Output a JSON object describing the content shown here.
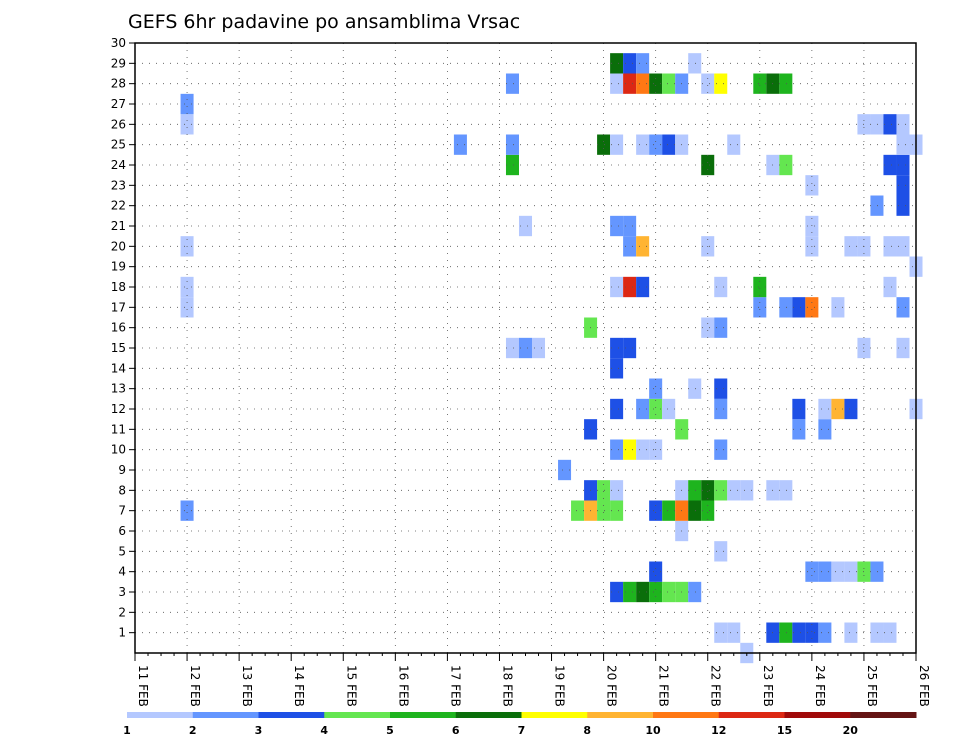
{
  "chart_data": {
    "type": "heatmap",
    "title": "GEFS 6hr padavine po ansamblima Vrsac",
    "xlabel": "",
    "ylabel": "",
    "x_tick_labels": [
      "11 FEB",
      "12 FEB",
      "13 FEB",
      "14 FEB",
      "15 FEB",
      "16 FEB",
      "17 FEB",
      "18 FEB",
      "19 FEB",
      "20 FEB",
      "21 FEB",
      "22 FEB",
      "23 FEB",
      "24 FEB",
      "25 FEB",
      "26 FEB"
    ],
    "xlim": [
      0,
      15
    ],
    "y_tick_labels": [
      "1",
      "2",
      "3",
      "4",
      "5",
      "6",
      "7",
      "8",
      "9",
      "10",
      "11",
      "12",
      "13",
      "14",
      "15",
      "16",
      "17",
      "18",
      "19",
      "20",
      "21",
      "22",
      "23",
      "24",
      "25",
      "26",
      "27",
      "28",
      "29",
      "30"
    ],
    "ylim": [
      0,
      30
    ],
    "grid": true,
    "legend": {
      "placement": "bottom",
      "labels": [
        "1",
        "2",
        "3",
        "4",
        "5",
        "6",
        "7",
        "8",
        "10",
        "12",
        "15",
        "20"
      ],
      "colors": [
        "#b4c8ff",
        "#6496ff",
        "#1e50e6",
        "#64e650",
        "#1eb41e",
        "#0a6e0a",
        "#ffff00",
        "#ffb432",
        "#ff7814",
        "#dc2814",
        "#a00a0a",
        "#641414"
      ]
    },
    "cells_note": "each cell: [member, day offset from 11 FEB, level index into legend.colors]",
    "cells": [
      [
        1,
        11.25,
        0
      ],
      [
        1,
        11.5,
        0
      ],
      [
        1,
        12.25,
        2
      ],
      [
        1,
        12.5,
        4
      ],
      [
        1,
        12.75,
        2
      ],
      [
        1,
        13.0,
        2
      ],
      [
        1,
        13.25,
        1
      ],
      [
        1,
        13.75,
        0
      ],
      [
        1,
        14.25,
        0
      ],
      [
        1,
        14.5,
        0
      ],
      [
        0,
        11.75,
        0
      ],
      [
        3,
        9.25,
        2
      ],
      [
        3,
        9.5,
        4
      ],
      [
        3,
        9.75,
        5
      ],
      [
        3,
        10.0,
        4
      ],
      [
        3,
        10.25,
        3
      ],
      [
        3,
        10.5,
        3
      ],
      [
        3,
        10.75,
        1
      ],
      [
        4,
        10.0,
        2
      ],
      [
        4,
        13.0,
        1
      ],
      [
        4,
        13.25,
        1
      ],
      [
        4,
        13.5,
        0
      ],
      [
        4,
        13.75,
        0
      ],
      [
        4,
        14.0,
        3
      ],
      [
        4,
        14.25,
        1
      ],
      [
        5,
        11.25,
        0
      ],
      [
        6,
        10.5,
        0
      ],
      [
        7,
        1.0,
        1
      ],
      [
        7,
        8.5,
        3
      ],
      [
        7,
        8.75,
        7
      ],
      [
        7,
        9.0,
        3
      ],
      [
        7,
        9.25,
        3
      ],
      [
        7,
        10.0,
        2
      ],
      [
        7,
        10.25,
        4
      ],
      [
        7,
        10.5,
        8
      ],
      [
        7,
        10.75,
        5
      ],
      [
        7,
        11.0,
        4
      ],
      [
        8,
        8.75,
        2
      ],
      [
        8,
        9.0,
        3
      ],
      [
        8,
        9.25,
        0
      ],
      [
        8,
        10.5,
        0
      ],
      [
        8,
        10.75,
        4
      ],
      [
        8,
        11.0,
        5
      ],
      [
        8,
        11.25,
        3
      ],
      [
        8,
        11.5,
        0
      ],
      [
        8,
        11.75,
        0
      ],
      [
        8,
        12.25,
        0
      ],
      [
        8,
        12.5,
        0
      ],
      [
        9,
        8.25,
        1
      ],
      [
        10,
        9.25,
        1
      ],
      [
        10,
        9.5,
        6
      ],
      [
        10,
        9.75,
        0
      ],
      [
        10,
        10.0,
        0
      ],
      [
        10,
        11.25,
        1
      ],
      [
        11,
        8.75,
        2
      ],
      [
        11,
        10.5,
        3
      ],
      [
        11,
        12.75,
        1
      ],
      [
        11,
        13.25,
        1
      ],
      [
        12,
        9.25,
        2
      ],
      [
        12,
        9.75,
        1
      ],
      [
        12,
        10.0,
        3
      ],
      [
        12,
        10.25,
        0
      ],
      [
        12,
        11.25,
        1
      ],
      [
        12,
        12.75,
        2
      ],
      [
        12,
        13.25,
        0
      ],
      [
        12,
        13.5,
        7
      ],
      [
        12,
        13.75,
        2
      ],
      [
        12,
        15.0,
        0
      ],
      [
        13,
        10.0,
        1
      ],
      [
        13,
        10.75,
        0
      ],
      [
        13,
        11.25,
        2
      ],
      [
        14,
        9.25,
        2
      ],
      [
        15,
        7.25,
        0
      ],
      [
        15,
        7.5,
        1
      ],
      [
        15,
        7.75,
        0
      ],
      [
        15,
        9.25,
        2
      ],
      [
        15,
        9.5,
        2
      ],
      [
        15,
        14.0,
        0
      ],
      [
        15,
        14.75,
        0
      ],
      [
        16,
        8.75,
        3
      ],
      [
        16,
        11.0,
        0
      ],
      [
        16,
        11.25,
        1
      ],
      [
        17,
        12.0,
        1
      ],
      [
        17,
        12.5,
        1
      ],
      [
        17,
        12.75,
        2
      ],
      [
        17,
        13.0,
        8
      ],
      [
        17,
        13.5,
        0
      ],
      [
        17,
        14.75,
        1
      ],
      [
        17,
        1.0,
        0
      ],
      [
        18,
        1.0,
        0
      ],
      [
        18,
        9.25,
        0
      ],
      [
        18,
        9.5,
        9
      ],
      [
        18,
        9.75,
        2
      ],
      [
        18,
        11.25,
        0
      ],
      [
        18,
        12.0,
        4
      ],
      [
        18,
        14.5,
        0
      ],
      [
        19,
        15.0,
        0
      ],
      [
        20,
        9.5,
        1
      ],
      [
        20,
        9.75,
        7
      ],
      [
        20,
        1.0,
        0
      ],
      [
        20,
        11.0,
        0
      ],
      [
        20,
        13.0,
        0
      ],
      [
        20,
        13.75,
        0
      ],
      [
        20,
        14.0,
        0
      ],
      [
        20,
        14.5,
        0
      ],
      [
        20,
        14.75,
        0
      ],
      [
        21,
        7.5,
        0
      ],
      [
        21,
        9.25,
        1
      ],
      [
        21,
        9.5,
        1
      ],
      [
        21,
        13.0,
        0
      ],
      [
        22,
        14.25,
        1
      ],
      [
        22,
        14.75,
        2
      ],
      [
        23,
        13.0,
        0
      ],
      [
        23,
        14.75,
        2
      ],
      [
        24,
        7.25,
        4
      ],
      [
        24,
        11.0,
        5
      ],
      [
        24,
        12.25,
        0
      ],
      [
        24,
        12.5,
        3
      ],
      [
        24,
        14.5,
        2
      ],
      [
        24,
        14.75,
        2
      ],
      [
        25,
        6.25,
        1
      ],
      [
        25,
        7.25,
        1
      ],
      [
        25,
        9.0,
        5
      ],
      [
        25,
        9.25,
        0
      ],
      [
        25,
        9.75,
        0
      ],
      [
        25,
        10.0,
        1
      ],
      [
        25,
        10.25,
        2
      ],
      [
        25,
        10.5,
        0
      ],
      [
        25,
        11.5,
        0
      ],
      [
        25,
        14.75,
        0
      ],
      [
        25,
        15.0,
        0
      ],
      [
        26,
        1.0,
        0
      ],
      [
        26,
        14.0,
        0
      ],
      [
        26,
        14.25,
        0
      ],
      [
        26,
        14.5,
        2
      ],
      [
        26,
        14.75,
        0
      ],
      [
        27,
        1.0,
        1
      ],
      [
        28,
        7.25,
        1
      ],
      [
        28,
        9.25,
        0
      ],
      [
        28,
        9.5,
        9
      ],
      [
        28,
        9.75,
        8
      ],
      [
        28,
        10.0,
        5
      ],
      [
        28,
        10.25,
        3
      ],
      [
        28,
        10.5,
        1
      ],
      [
        28,
        11.0,
        0
      ],
      [
        28,
        11.25,
        6
      ],
      [
        28,
        12.0,
        4
      ],
      [
        28,
        12.25,
        5
      ],
      [
        28,
        12.5,
        4
      ],
      [
        29,
        9.25,
        5
      ],
      [
        29,
        9.5,
        2
      ],
      [
        29,
        9.75,
        1
      ],
      [
        29,
        10.75,
        0
      ]
    ]
  }
}
